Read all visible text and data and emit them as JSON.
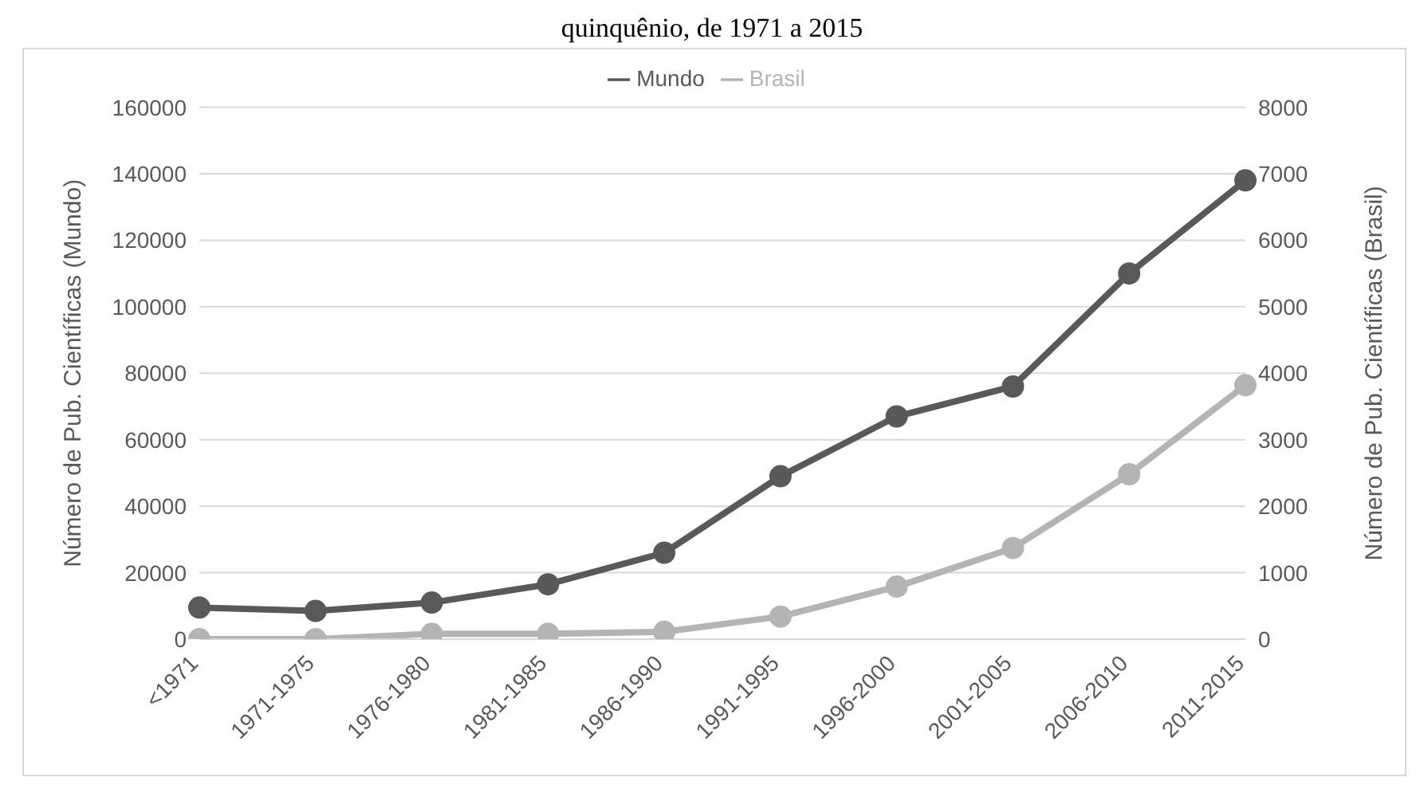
{
  "chart_data": {
    "type": "line",
    "title": "quinquênio, de 1971 a 2015",
    "ylabel": "Número de Pub. Científicas (Mundo)",
    "y2label": "Número de Pub. Científicas (Brasil)",
    "categories": [
      "<1971",
      "1971-1975",
      "1976-1980",
      "1981-1985",
      "1986-1990",
      "1991-1995",
      "1996-2000",
      "2001-2005",
      "2006-2010",
      "2011-2015"
    ],
    "series": [
      {
        "name": "Mundo",
        "color": "#595959",
        "values": [
          9500,
          8500,
          11000,
          16500,
          26000,
          49000,
          67000,
          76000,
          110000,
          138000
        ]
      },
      {
        "name": "Brasil",
        "color": "#b4b4b4",
        "axis": "y2",
        "values": [
          0,
          0,
          80,
          80,
          110,
          340,
          790,
          1370,
          2480,
          3820
        ]
      }
    ],
    "ylim": [
      0,
      160000
    ],
    "yticks": [
      0,
      20000,
      40000,
      60000,
      80000,
      100000,
      120000,
      140000,
      160000
    ],
    "y2lim": [
      0,
      8000
    ],
    "y2ticks": [
      0,
      1000,
      2000,
      3000,
      4000,
      5000,
      6000,
      7000,
      8000
    ],
    "grid": "y",
    "legend": "top",
    "marker": "circle",
    "line_style": "solid"
  }
}
